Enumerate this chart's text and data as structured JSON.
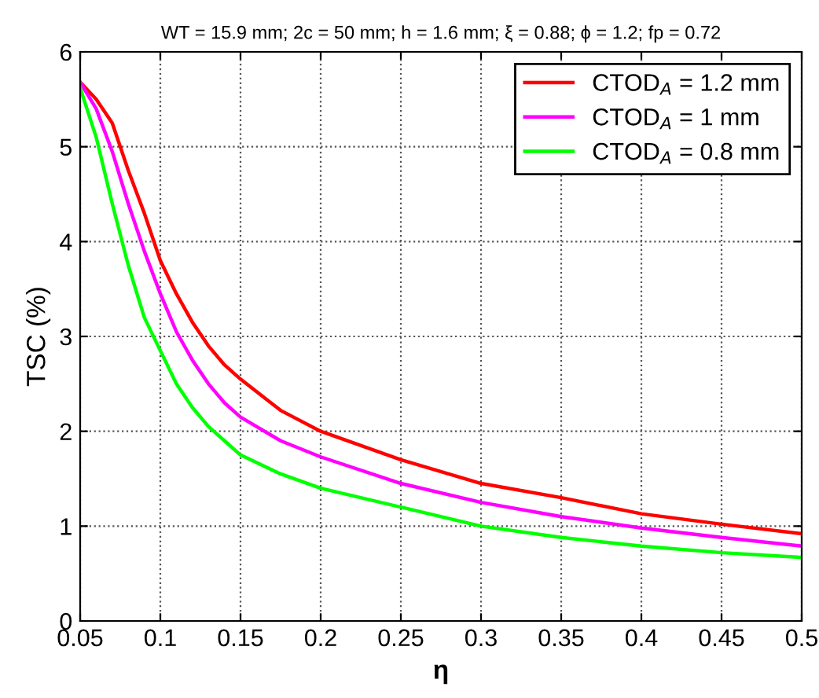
{
  "chart_data": {
    "type": "line",
    "title": "WT = 15.9 mm; 2c = 50 mm; h = 1.6 mm; ξ = 0.88; ϕ = 1.2; fp = 0.72",
    "xlabel": "η",
    "ylabel": "TSC (%)",
    "x": [
      0.05,
      0.06,
      0.07,
      0.08,
      0.09,
      0.1,
      0.11,
      0.12,
      0.13,
      0.14,
      0.15,
      0.175,
      0.2,
      0.25,
      0.3,
      0.35,
      0.4,
      0.45,
      0.5
    ],
    "series": [
      {
        "name": "CTOD$_{A}$ = 1.2 mm",
        "color": "#ff0000",
        "values": [
          5.68,
          5.5,
          5.25,
          4.75,
          4.3,
          3.8,
          3.45,
          3.15,
          2.9,
          2.7,
          2.55,
          2.22,
          2.0,
          1.7,
          1.45,
          1.3,
          1.13,
          1.02,
          0.92
        ]
      },
      {
        "name": "CTOD$_{A}$ = 1 mm",
        "color": "#ff00ff",
        "values": [
          5.68,
          5.4,
          4.95,
          4.4,
          3.9,
          3.45,
          3.05,
          2.75,
          2.5,
          2.3,
          2.15,
          1.9,
          1.73,
          1.45,
          1.25,
          1.1,
          0.98,
          0.88,
          0.79
        ]
      },
      {
        "name": "CTOD$_{A}$ = 0.8 mm",
        "color": "#00ff00",
        "values": [
          5.62,
          5.1,
          4.4,
          3.75,
          3.2,
          2.85,
          2.5,
          2.25,
          2.05,
          1.9,
          1.75,
          1.55,
          1.4,
          1.2,
          1.0,
          0.88,
          0.79,
          0.72,
          0.67
        ]
      }
    ],
    "xlim": [
      0.05,
      0.5
    ],
    "xticks": [
      0.05,
      0.1,
      0.15,
      0.2,
      0.25,
      0.3,
      0.35,
      0.4,
      0.45,
      0.5
    ],
    "ylim": [
      0,
      6
    ],
    "yticks": [
      0,
      1,
      2,
      3,
      4,
      5,
      6
    ],
    "grid": true,
    "legend": "top right",
    "line_style": "solid"
  }
}
